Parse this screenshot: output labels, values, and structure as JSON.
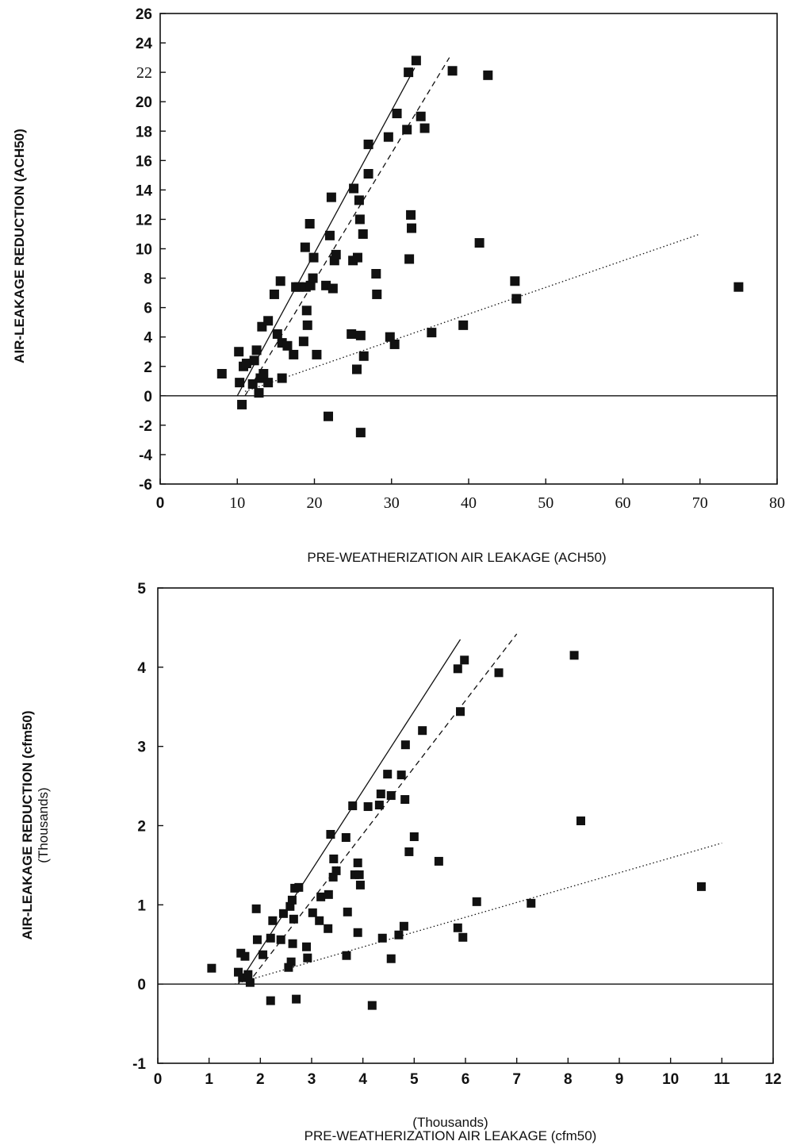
{
  "chart_data": [
    {
      "type": "scatter",
      "title": "",
      "xlabel": "PRE-WEATHERIZATION AIR LEAKAGE (ACH50)",
      "ylabel": "AIR-LEAKAGE REDUCTION (ACH50)",
      "xlim": [
        0,
        80
      ],
      "ylim": [
        -6,
        26
      ],
      "x_ticks": [
        "0",
        "10",
        "20",
        "30",
        "40",
        "50",
        "60",
        "70",
        "80"
      ],
      "y_ticks": [
        "-6",
        "-4",
        "-2",
        "0",
        "2",
        "4",
        "6",
        "8",
        "10",
        "12",
        "14",
        "16",
        "18",
        "20",
        "22",
        "24",
        "26"
      ],
      "grid": false,
      "series": [
        {
          "marker": "square",
          "points": [
            [
              8,
              1.5
            ],
            [
              10.2,
              3
            ],
            [
              10.3,
              0.9
            ],
            [
              10.6,
              -0.6
            ],
            [
              10.8,
              2
            ],
            [
              11.2,
              2.2
            ],
            [
              12,
              0.8
            ],
            [
              12.2,
              2.4
            ],
            [
              12.5,
              3.1
            ],
            [
              12.8,
              0.2
            ],
            [
              13,
              1.2
            ],
            [
              13.2,
              4.7
            ],
            [
              13.4,
              1.5
            ],
            [
              14,
              0.9
            ],
            [
              14,
              5.1
            ],
            [
              14.8,
              6.9
            ],
            [
              15.2,
              4.2
            ],
            [
              15.6,
              7.8
            ],
            [
              15.8,
              3.6
            ],
            [
              15.8,
              1.2
            ],
            [
              16.5,
              3.4
            ],
            [
              17.3,
              2.8
            ],
            [
              17.6,
              7.4
            ],
            [
              18,
              7.4
            ],
            [
              18.6,
              3.7
            ],
            [
              18.8,
              10.1
            ],
            [
              18.9,
              7.4
            ],
            [
              19,
              5.8
            ],
            [
              19.1,
              4.8
            ],
            [
              19.4,
              11.7
            ],
            [
              19.5,
              7.5
            ],
            [
              19.8,
              8
            ],
            [
              19.9,
              9.4
            ],
            [
              20.3,
              2.8
            ],
            [
              21.5,
              7.5
            ],
            [
              21.8,
              -1.4
            ],
            [
              22,
              10.9
            ],
            [
              22.2,
              13.5
            ],
            [
              22.4,
              7.3
            ],
            [
              22.6,
              9.2
            ],
            [
              22.8,
              9.6
            ],
            [
              24.8,
              4.2
            ],
            [
              25,
              9.2
            ],
            [
              25.1,
              14.1
            ],
            [
              25.5,
              1.8
            ],
            [
              25.6,
              9.4
            ],
            [
              25.8,
              13.3
            ],
            [
              25.9,
              12
            ],
            [
              26,
              -2.5
            ],
            [
              26,
              4.1
            ],
            [
              26.3,
              11
            ],
            [
              26.4,
              2.7
            ],
            [
              27,
              17.1
            ],
            [
              27,
              15.1
            ],
            [
              28,
              8.3
            ],
            [
              28.1,
              6.9
            ],
            [
              29.6,
              17.6
            ],
            [
              29.8,
              4
            ],
            [
              30.4,
              3.5
            ],
            [
              30.7,
              19.2
            ],
            [
              32,
              18.1
            ],
            [
              32.2,
              22
            ],
            [
              32.3,
              9.3
            ],
            [
              32.5,
              12.3
            ],
            [
              32.6,
              11.4
            ],
            [
              33.2,
              22.8
            ],
            [
              33.8,
              19
            ],
            [
              34.3,
              18.2
            ],
            [
              35.2,
              4.3
            ],
            [
              37.9,
              22.1
            ],
            [
              39.3,
              4.8
            ],
            [
              41.4,
              10.4
            ],
            [
              42.5,
              21.8
            ],
            [
              46,
              7.8
            ],
            [
              46.2,
              6.6
            ],
            [
              75,
              7.4
            ]
          ]
        }
      ],
      "fit_lines": [
        {
          "style": "solid",
          "x": [
            10,
            33
          ],
          "y": [
            0,
            22.3
          ]
        },
        {
          "style": "dashed",
          "x": [
            11,
            37.5
          ],
          "y": [
            0,
            23
          ]
        },
        {
          "style": "dotted",
          "x": [
            11,
            70
          ],
          "y": [
            0.3,
            11
          ]
        }
      ]
    },
    {
      "type": "scatter",
      "title": "",
      "xlabel": "PRE-WEATHERIZATION AIR LEAKAGE (cfm50)",
      "x_unit_note": "(Thousands)",
      "ylabel": "AIR-LEAKAGE REDUCTION (cfm50)",
      "y_unit_note": "(Thousands)",
      "xlim": [
        0,
        12
      ],
      "ylim": [
        -1,
        5
      ],
      "x_ticks": [
        "0",
        "1",
        "2",
        "3",
        "4",
        "5",
        "6",
        "7",
        "8",
        "9",
        "10",
        "11",
        "12"
      ],
      "y_ticks": [
        "-1",
        "0",
        "1",
        "2",
        "3",
        "4",
        "5"
      ],
      "grid": false,
      "series": [
        {
          "marker": "square",
          "points": [
            [
              1.05,
              0.2
            ],
            [
              1.57,
              0.15
            ],
            [
              1.62,
              0.39
            ],
            [
              1.65,
              0.08
            ],
            [
              1.7,
              0.35
            ],
            [
              1.76,
              0.12
            ],
            [
              1.8,
              0.02
            ],
            [
              1.92,
              0.95
            ],
            [
              1.94,
              0.56
            ],
            [
              2.05,
              0.37
            ],
            [
              2.2,
              -0.21
            ],
            [
              2.2,
              0.58
            ],
            [
              2.24,
              0.8
            ],
            [
              2.4,
              0.56
            ],
            [
              2.45,
              0.89
            ],
            [
              2.55,
              0.21
            ],
            [
              2.58,
              0.98
            ],
            [
              2.6,
              0.28
            ],
            [
              2.62,
              1.06
            ],
            [
              2.63,
              0.51
            ],
            [
              2.65,
              0.82
            ],
            [
              2.67,
              1.21
            ],
            [
              2.7,
              -0.19
            ],
            [
              2.75,
              1.22
            ],
            [
              2.9,
              0.47
            ],
            [
              2.92,
              0.33
            ],
            [
              3.02,
              0.9
            ],
            [
              3.15,
              0.8
            ],
            [
              3.18,
              1.1
            ],
            [
              3.32,
              0.7
            ],
            [
              3.33,
              1.13
            ],
            [
              3.37,
              1.89
            ],
            [
              3.42,
              1.35
            ],
            [
              3.43,
              1.58
            ],
            [
              3.48,
              1.43
            ],
            [
              3.67,
              1.85
            ],
            [
              3.68,
              0.36
            ],
            [
              3.7,
              0.91
            ],
            [
              3.8,
              2.25
            ],
            [
              3.84,
              1.38
            ],
            [
              3.9,
              0.65
            ],
            [
              3.9,
              1.53
            ],
            [
              3.93,
              1.38
            ],
            [
              3.95,
              1.25
            ],
            [
              4.1,
              2.24
            ],
            [
              4.18,
              -0.27
            ],
            [
              4.32,
              2.26
            ],
            [
              4.35,
              2.4
            ],
            [
              4.38,
              0.58
            ],
            [
              4.48,
              2.65
            ],
            [
              4.55,
              2.38
            ],
            [
              4.55,
              0.32
            ],
            [
              4.7,
              0.62
            ],
            [
              4.75,
              2.64
            ],
            [
              4.8,
              0.73
            ],
            [
              4.82,
              2.33
            ],
            [
              4.83,
              3.02
            ],
            [
              4.9,
              1.67
            ],
            [
              5.0,
              1.86
            ],
            [
              5.16,
              3.2
            ],
            [
              5.48,
              1.55
            ],
            [
              5.85,
              3.98
            ],
            [
              5.85,
              0.71
            ],
            [
              5.9,
              3.44
            ],
            [
              5.95,
              0.59
            ],
            [
              5.98,
              4.09
            ],
            [
              6.22,
              1.04
            ],
            [
              6.65,
              3.93
            ],
            [
              7.28,
              1.02
            ],
            [
              8.12,
              4.15
            ],
            [
              8.25,
              2.06
            ],
            [
              10.6,
              1.23
            ]
          ]
        }
      ],
      "fit_lines": [
        {
          "style": "solid",
          "x": [
            1.57,
            5.9
          ],
          "y": [
            0,
            4.35
          ]
        },
        {
          "style": "dashed",
          "x": [
            1.75,
            7.0
          ],
          "y": [
            0,
            4.42
          ]
        },
        {
          "style": "dotted",
          "x": [
            1.5,
            11.0
          ],
          "y": [
            0,
            1.78
          ]
        }
      ]
    }
  ]
}
